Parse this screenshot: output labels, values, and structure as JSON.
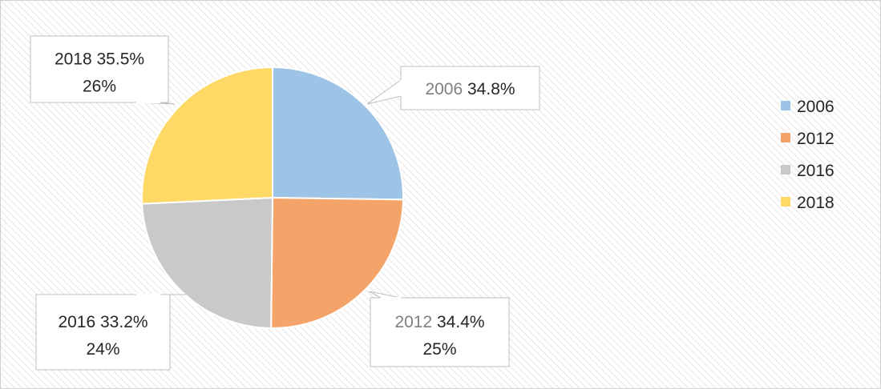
{
  "chart_data": {
    "type": "pie",
    "categories": [
      "2006",
      "2012",
      "2016",
      "2018"
    ],
    "values": [
      34.8,
      34.4,
      33.2,
      35.5
    ],
    "value_labels": [
      "34.8%",
      "34.4%",
      "33.2%",
      "35.5%"
    ],
    "shares": [
      null,
      25,
      24,
      26
    ],
    "share_labels": [
      null,
      "25%",
      "24%",
      "26%"
    ],
    "colors": [
      "#9dc3e6",
      "#f4a468",
      "#c9c9c9",
      "#ffd966"
    ],
    "legend": "right"
  }
}
